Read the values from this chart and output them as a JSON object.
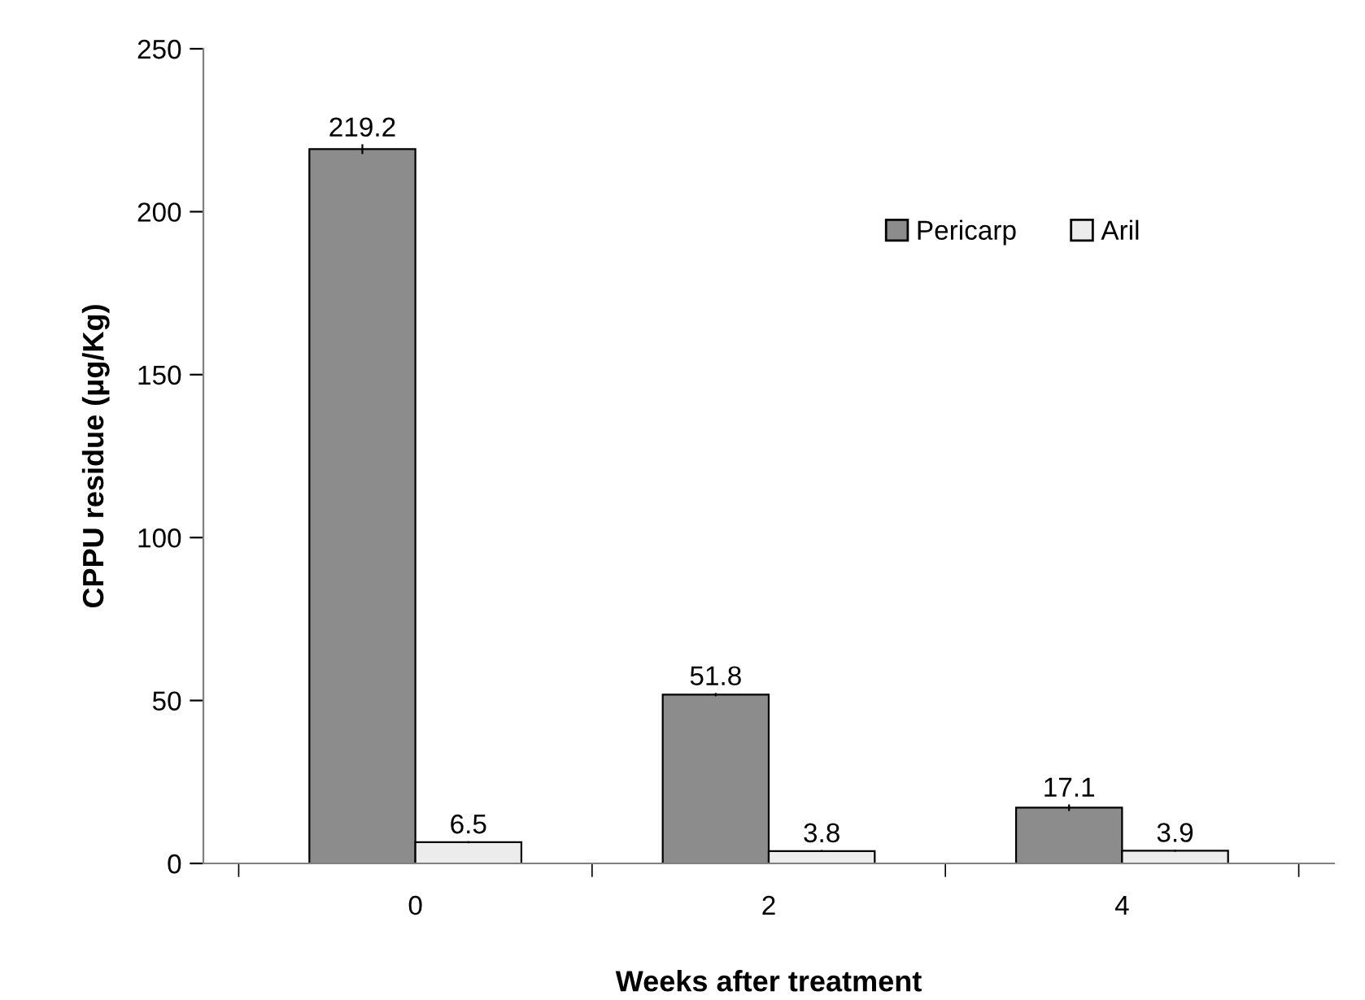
{
  "chart_data": {
    "type": "bar",
    "xlabel": "Weeks after treatment",
    "ylabel": "CPPU residue (μg/Kg)",
    "categories": [
      "0",
      "2",
      "4"
    ],
    "series": [
      {
        "name": "Pericarp",
        "color": "#8c8c8c",
        "values": [
          219.2,
          51.8,
          17.1
        ],
        "errors": [
          1.5,
          0.5,
          1
        ]
      },
      {
        "name": "Aril",
        "color": "#ececec",
        "values": [
          6.5,
          3.8,
          3.9
        ],
        "errors": [
          0.3,
          0.3,
          0.3
        ]
      }
    ],
    "ylim": [
      0,
      250
    ],
    "yticks": [
      0,
      50,
      100,
      150,
      200,
      250
    ],
    "grid": false,
    "legend": "top right",
    "data_labels": true
  }
}
